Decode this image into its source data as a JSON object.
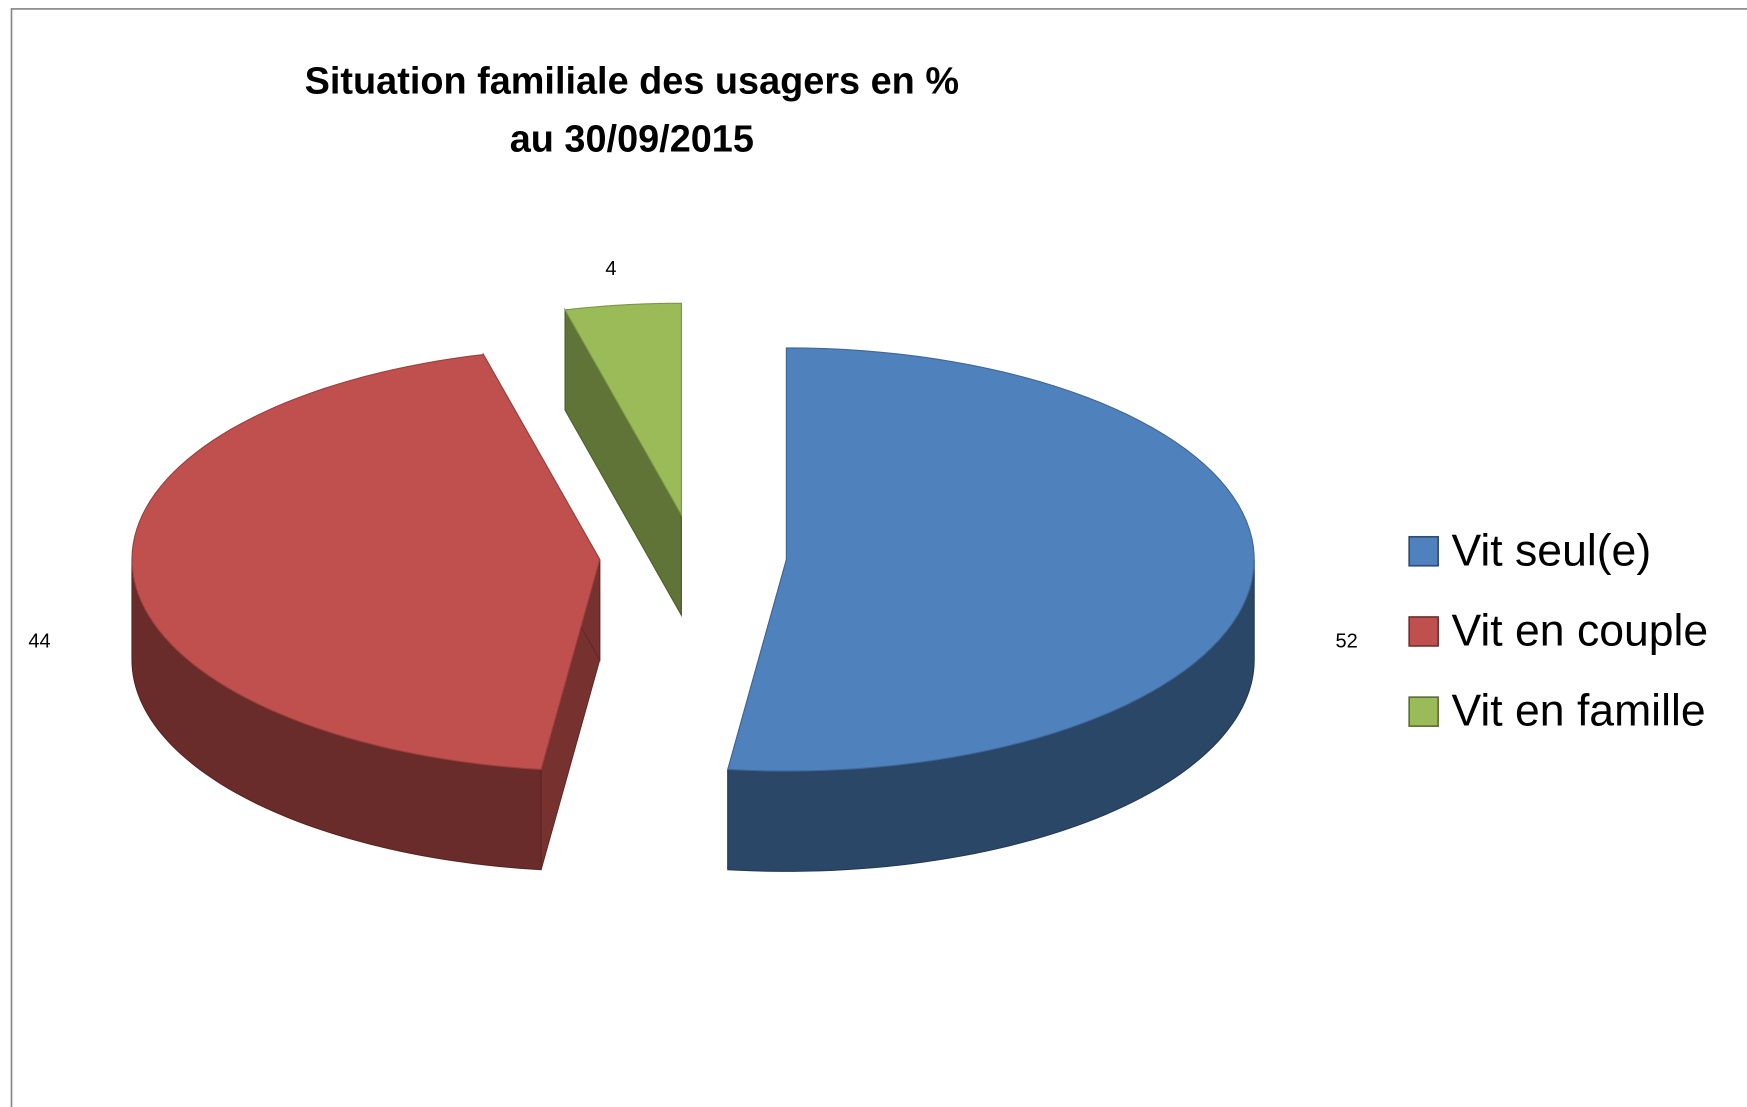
{
  "chart_data": {
    "type": "pie",
    "title": [
      "Situation familiale des usagers en %",
      "au 30/09/2015"
    ],
    "categories": [
      "Vit seul(e)",
      "Vit en couple",
      "Vit en famille"
    ],
    "values": [
      52,
      44,
      4
    ],
    "colors": [
      "#4f81bd",
      "#c0504d",
      "#9bbb59"
    ],
    "legend": "right"
  }
}
